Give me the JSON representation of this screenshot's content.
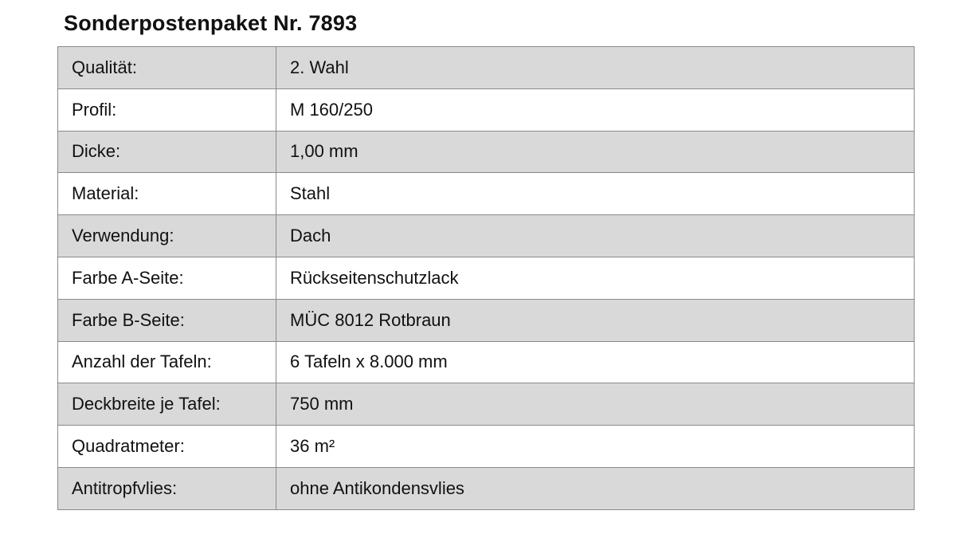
{
  "title": "Sonderpostenpaket Nr. 7893",
  "rows": [
    {
      "label": "Qualität:",
      "value": "2. Wahl"
    },
    {
      "label": "Profil:",
      "value": "M 160/250"
    },
    {
      "label": "Dicke:",
      "value": "1,00 mm"
    },
    {
      "label": "Material:",
      "value": "Stahl"
    },
    {
      "label": "Verwendung:",
      "value": "Dach"
    },
    {
      "label": "Farbe A-Seite:",
      "value": "Rückseitenschutzlack"
    },
    {
      "label": "Farbe B-Seite:",
      "value": "MÜC 8012 Rotbraun"
    },
    {
      "label": "Anzahl der Tafeln:",
      "value": "6 Tafeln x 8.000 mm"
    },
    {
      "label": "Deckbreite je Tafel:",
      "value": "750 mm"
    },
    {
      "label": "Quadratmeter:",
      "value": "36 m²"
    },
    {
      "label": "Antitropfvlies:",
      "value": "ohne Antikondensvlies"
    }
  ],
  "colors": {
    "stripe": "#d9d9d9",
    "border": "#8a8a8a"
  }
}
